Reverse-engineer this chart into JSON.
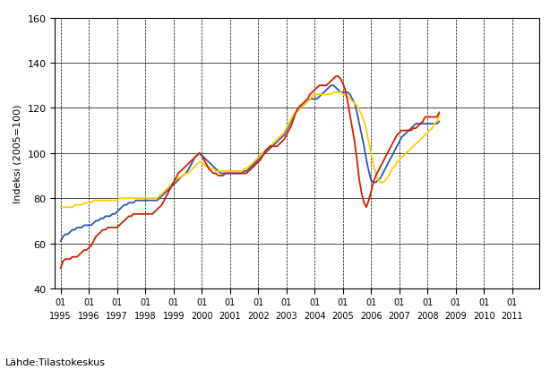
{
  "ylabel": "Indeksi (2005=100)",
  "source": "Lähde:Tilastokeskus",
  "ylim": [
    40,
    160
  ],
  "yticks": [
    40,
    60,
    80,
    100,
    120,
    140,
    160
  ],
  "colors": {
    "koko": "#3355aa",
    "kotimaan": "#ffcc00",
    "vienti": "#cc2200"
  },
  "koko": [
    61,
    63,
    64,
    64,
    65,
    66,
    66,
    67,
    67,
    67,
    68,
    68,
    68,
    68,
    69,
    70,
    70,
    71,
    71,
    72,
    72,
    72,
    73,
    73,
    74,
    75,
    76,
    77,
    77,
    78,
    78,
    78,
    79,
    79,
    79,
    79,
    79,
    79,
    79,
    79,
    79,
    79,
    80,
    81,
    82,
    83,
    84,
    85,
    86,
    87,
    88,
    89,
    90,
    91,
    92,
    94,
    96,
    98,
    99,
    100,
    99,
    98,
    97,
    96,
    95,
    94,
    93,
    92,
    91,
    91,
    91,
    91,
    91,
    91,
    91,
    91,
    91,
    91,
    92,
    92,
    93,
    94,
    95,
    96,
    97,
    98,
    99,
    100,
    101,
    102,
    103,
    104,
    105,
    106,
    107,
    108,
    110,
    112,
    114,
    116,
    118,
    119,
    120,
    121,
    122,
    123,
    124,
    124,
    124,
    124,
    125,
    126,
    127,
    128,
    129,
    130,
    130,
    129,
    128,
    127,
    127,
    127,
    127,
    126,
    124,
    122,
    118,
    113,
    108,
    103,
    97,
    92,
    88,
    87,
    87,
    88,
    89,
    91,
    93,
    95,
    97,
    99,
    101,
    103,
    105,
    107,
    108,
    109,
    110,
    111,
    112,
    113,
    113,
    113,
    113,
    113,
    113,
    113,
    113,
    113,
    113,
    114
  ],
  "kotimaan": [
    76,
    76,
    76,
    76,
    76,
    76,
    77,
    77,
    77,
    77,
    78,
    78,
    78,
    78,
    79,
    79,
    79,
    79,
    79,
    79,
    79,
    79,
    79,
    79,
    79,
    80,
    80,
    80,
    80,
    80,
    80,
    80,
    80,
    80,
    80,
    80,
    80,
    80,
    80,
    80,
    80,
    80,
    81,
    82,
    83,
    84,
    85,
    86,
    87,
    88,
    89,
    89,
    90,
    91,
    91,
    92,
    93,
    94,
    95,
    96,
    96,
    95,
    94,
    94,
    93,
    93,
    92,
    92,
    92,
    92,
    92,
    92,
    92,
    92,
    92,
    92,
    92,
    92,
    93,
    93,
    94,
    95,
    96,
    97,
    98,
    99,
    100,
    101,
    102,
    103,
    104,
    105,
    106,
    107,
    108,
    109,
    111,
    113,
    115,
    117,
    118,
    119,
    120,
    121,
    122,
    123,
    124,
    125,
    126,
    126,
    126,
    126,
    126,
    126,
    126,
    126,
    127,
    127,
    127,
    127,
    126,
    126,
    125,
    124,
    123,
    122,
    121,
    119,
    117,
    114,
    110,
    105,
    100,
    95,
    91,
    88,
    87,
    87,
    88,
    89,
    91,
    93,
    94,
    96,
    97,
    98,
    99,
    100,
    101,
    102,
    103,
    104,
    105,
    106,
    107,
    108,
    109,
    110,
    111,
    113,
    114,
    117
  ],
  "vienti": [
    49,
    52,
    53,
    53,
    53,
    54,
    54,
    54,
    55,
    56,
    57,
    57,
    58,
    59,
    61,
    63,
    64,
    65,
    66,
    66,
    67,
    67,
    67,
    67,
    67,
    68,
    69,
    70,
    71,
    72,
    72,
    73,
    73,
    73,
    73,
    73,
    73,
    73,
    73,
    73,
    74,
    75,
    76,
    77,
    79,
    81,
    83,
    85,
    87,
    89,
    91,
    92,
    93,
    94,
    95,
    96,
    97,
    98,
    99,
    100,
    99,
    97,
    95,
    93,
    92,
    91,
    91,
    90,
    90,
    90,
    91,
    91,
    91,
    91,
    91,
    91,
    91,
    91,
    91,
    91,
    92,
    93,
    94,
    95,
    96,
    97,
    99,
    101,
    102,
    103,
    103,
    103,
    103,
    104,
    105,
    106,
    108,
    110,
    112,
    115,
    118,
    120,
    121,
    122,
    123,
    124,
    126,
    127,
    128,
    129,
    130,
    130,
    130,
    130,
    131,
    132,
    133,
    134,
    134,
    133,
    131,
    128,
    123,
    117,
    111,
    105,
    97,
    88,
    82,
    78,
    76,
    79,
    83,
    87,
    90,
    92,
    94,
    96,
    98,
    100,
    102,
    104,
    106,
    108,
    109,
    110,
    110,
    110,
    110,
    110,
    111,
    111,
    112,
    113,
    114,
    116,
    116,
    116,
    116,
    116,
    116,
    118
  ]
}
